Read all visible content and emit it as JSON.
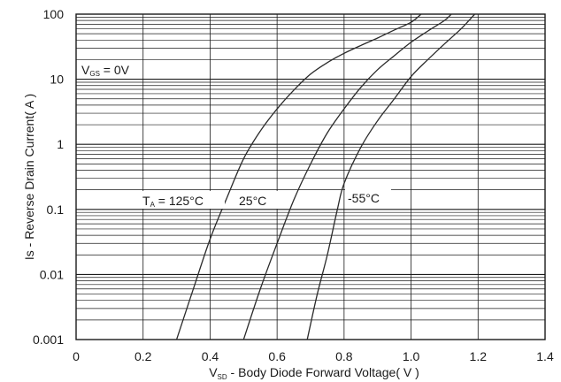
{
  "chart_data": {
    "type": "line",
    "xlabel": {
      "main": "V",
      "sub": "SD",
      "rest": " - Body Diode Forward Voltage( V )"
    },
    "ylabel": "Is - Reverse Drain Current( A )",
    "x_scale": "linear",
    "y_scale": "log",
    "xlim": [
      0,
      1.4
    ],
    "ylim": [
      0.001,
      100
    ],
    "x_ticks": [
      "0",
      "0.2",
      "0.4",
      "0.6",
      "0.8",
      "1.0",
      "1.2",
      "1.4"
    ],
    "x_tick_values": [
      0,
      0.2,
      0.4,
      0.6,
      0.8,
      1.0,
      1.2,
      1.4
    ],
    "y_ticks": [
      "0.001",
      "0.01",
      "0.1",
      "1",
      "10",
      "100"
    ],
    "y_tick_values": [
      0.001,
      0.01,
      0.1,
      1,
      10,
      100
    ],
    "grid": true,
    "annotations": {
      "vgs": {
        "main": "V",
        "sub": "GS",
        "rest": " = 0V"
      },
      "ta": {
        "main": "T",
        "sub": "A",
        "rest": " = 125°C"
      },
      "t25": "25°C",
      "tm55": "-55°C"
    },
    "series": [
      {
        "x": [
          0.3,
          0.35,
          0.4,
          0.45,
          0.5,
          0.55,
          0.6,
          0.65,
          0.7,
          0.75,
          0.8,
          0.85,
          0.9,
          0.95,
          1.0,
          1.03
        ],
        "y": [
          0.001,
          0.006,
          0.035,
          0.15,
          0.6,
          1.6,
          3.5,
          6.8,
          12,
          18,
          25,
          33,
          43,
          57,
          75,
          100
        ]
      },
      {
        "x": [
          0.5,
          0.55,
          0.6,
          0.65,
          0.7,
          0.75,
          0.8,
          0.85,
          0.9,
          0.95,
          1.0,
          1.05,
          1.1,
          1.12
        ],
        "y": [
          0.001,
          0.006,
          0.03,
          0.14,
          0.5,
          1.5,
          3.5,
          7.5,
          14,
          23,
          37,
          55,
          80,
          100
        ]
      },
      {
        "x": [
          0.69,
          0.72,
          0.75,
          0.78,
          0.8,
          0.85,
          0.9,
          0.95,
          1.0,
          1.05,
          1.1,
          1.15,
          1.19
        ],
        "y": [
          0.001,
          0.005,
          0.02,
          0.1,
          0.25,
          0.9,
          2.3,
          5,
          11,
          20,
          35,
          60,
          100
        ]
      }
    ]
  }
}
